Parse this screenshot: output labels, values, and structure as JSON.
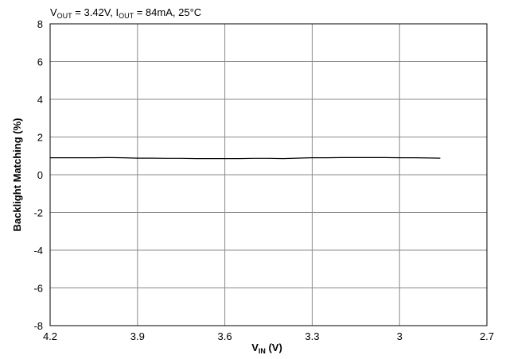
{
  "chart_data": {
    "type": "line",
    "conditions": {
      "vout_sub": "OUT",
      "vout_value": " = 3.42V, I",
      "iout_sub": "OUT",
      "iout_value": " = 84mA, 25°C"
    },
    "xlabel": {
      "main": "V",
      "sub": "IN",
      "unit": " (V)"
    },
    "ylabel": "Backlight Matching (%)",
    "xlim": [
      4.2,
      2.7
    ],
    "ylim": [
      -8,
      8
    ],
    "x_ticks": [
      4.2,
      3.9,
      3.6,
      3.3,
      3.0,
      2.7
    ],
    "x_tick_labels": [
      "4.2",
      "3.9",
      "3.6",
      "3.3",
      "3",
      "2.7"
    ],
    "y_ticks": [
      8,
      6,
      4,
      2,
      0,
      -2,
      -4,
      -6,
      -8
    ],
    "y_tick_labels": [
      "8",
      "6",
      "4",
      "2",
      "0",
      "-2",
      "-4",
      "-6",
      "-8"
    ],
    "grid": true,
    "series": [
      {
        "color": "#000000",
        "x": [
          4.2,
          4.15,
          4.1,
          4.05,
          4.0,
          3.95,
          3.9,
          3.85,
          3.8,
          3.75,
          3.7,
          3.65,
          3.6,
          3.55,
          3.5,
          3.45,
          3.4,
          3.35,
          3.3,
          3.25,
          3.2,
          3.15,
          3.1,
          3.05,
          3.0,
          2.95,
          2.9,
          2.86
        ],
        "y": [
          0.9,
          0.9,
          0.9,
          0.9,
          0.91,
          0.9,
          0.88,
          0.88,
          0.87,
          0.87,
          0.86,
          0.86,
          0.86,
          0.86,
          0.87,
          0.87,
          0.86,
          0.88,
          0.9,
          0.9,
          0.91,
          0.91,
          0.91,
          0.91,
          0.9,
          0.9,
          0.89,
          0.88
        ]
      }
    ]
  }
}
